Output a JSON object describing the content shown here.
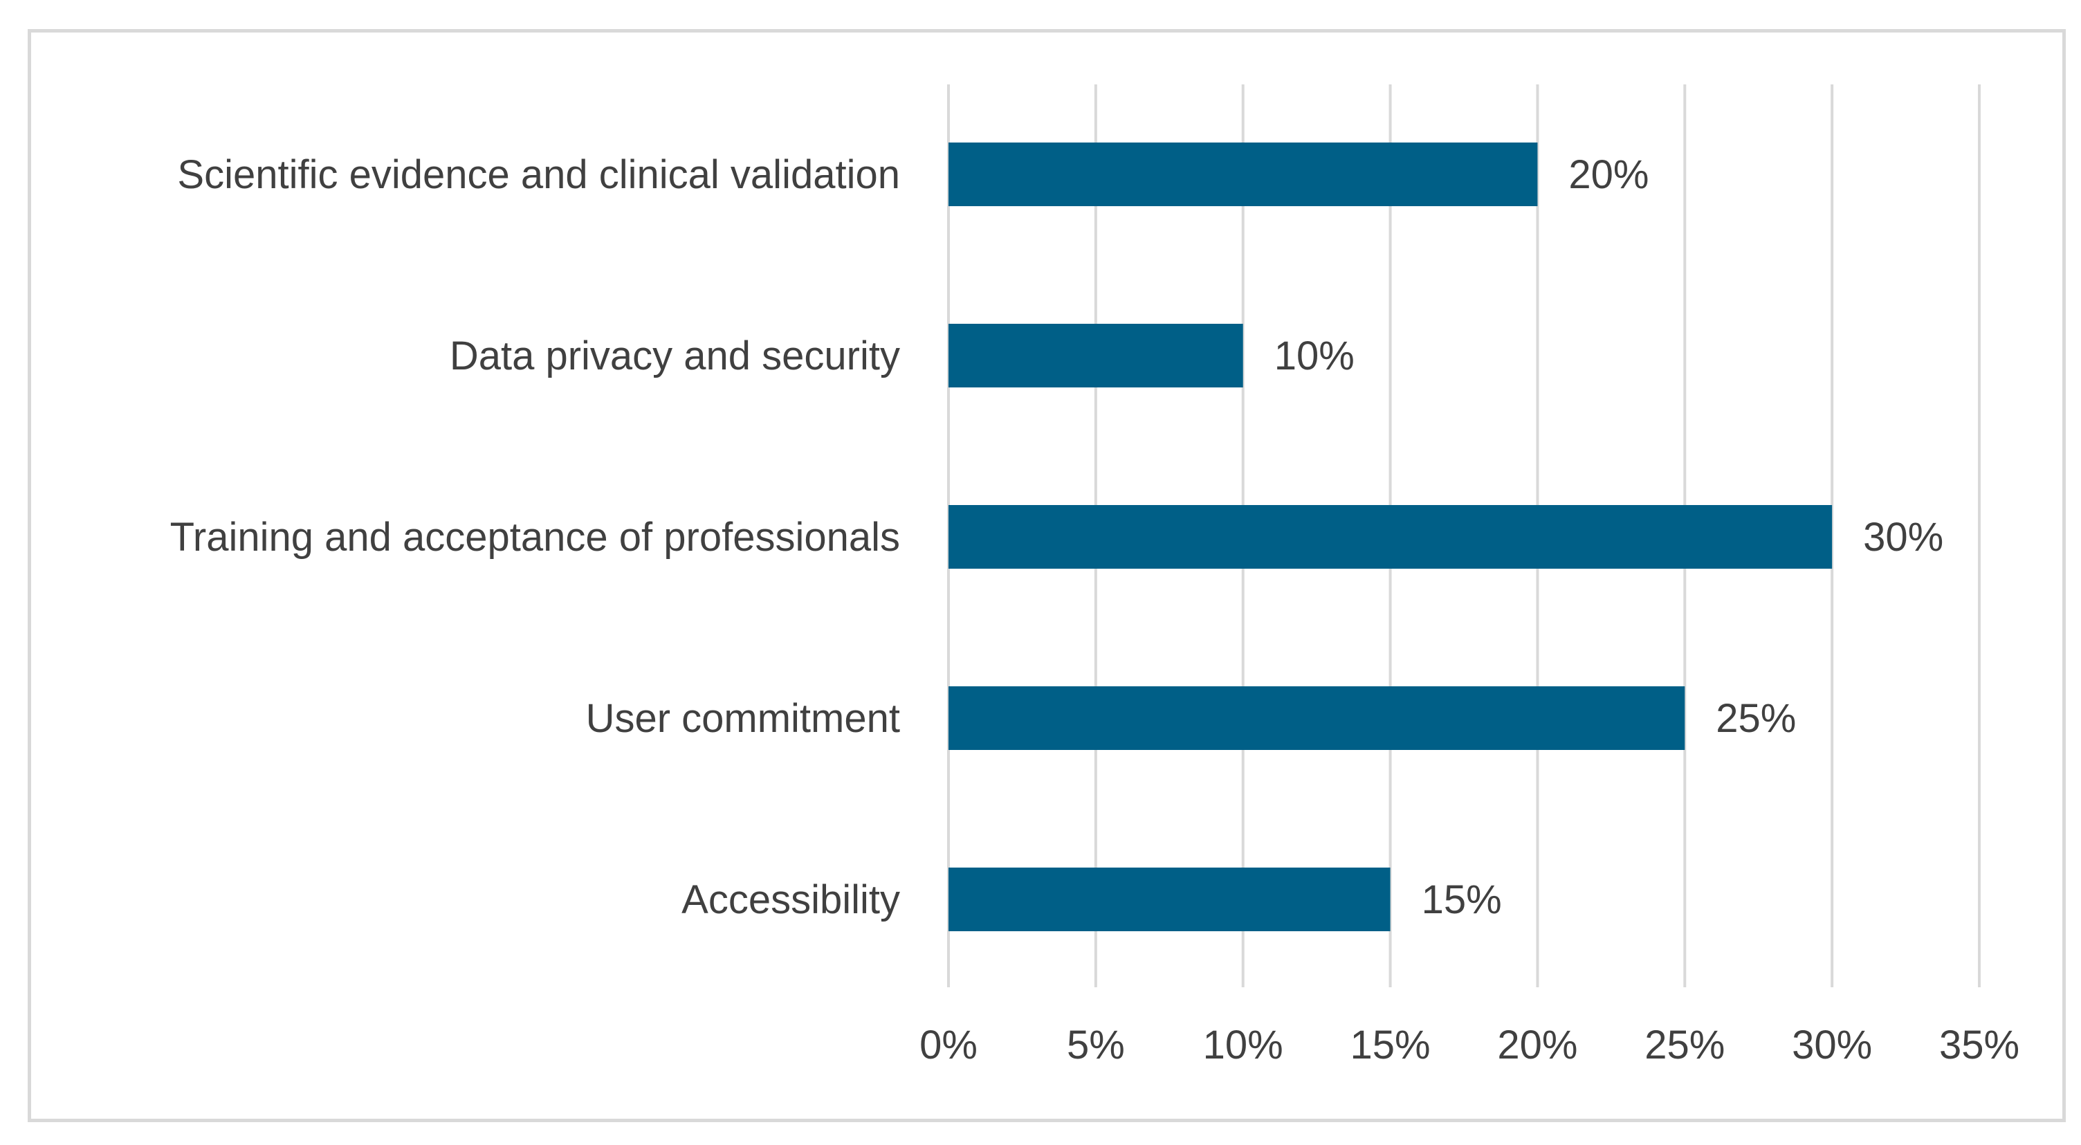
{
  "chart_data": {
    "type": "bar",
    "orientation": "horizontal",
    "categories": [
      "Scientific evidence and clinical validation",
      "Data privacy and security",
      "Training and acceptance of professionals",
      "User commitment",
      "Accessibility"
    ],
    "values": [
      20,
      10,
      30,
      25,
      15
    ],
    "value_labels": [
      "20%",
      "10%",
      "30%",
      "25%",
      "15%"
    ],
    "xlim": [
      0,
      35
    ],
    "xticks": [
      0,
      5,
      10,
      15,
      20,
      25,
      30,
      35
    ],
    "xtick_labels": [
      "0%",
      "5%",
      "10%",
      "15%",
      "20%",
      "25%",
      "30%",
      "35%"
    ],
    "grid": "vertical",
    "legend": "none",
    "colors": {
      "bar": "#005f87",
      "grid": "#d9d9d9",
      "text": "#404040",
      "frame": "#d9d9d9"
    }
  }
}
